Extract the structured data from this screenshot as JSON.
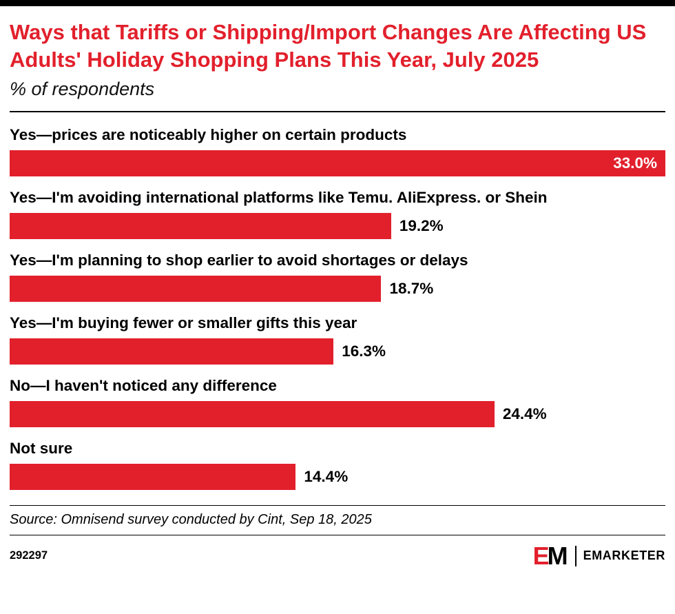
{
  "header": {
    "title": "Ways that Tariffs or Shipping/Import Changes Are Affecting US Adults' Holiday Shopping Plans This Year, July 2025",
    "subtitle": "% of respondents"
  },
  "chart_data": {
    "type": "bar",
    "orientation": "horizontal",
    "title": "Ways that Tariffs or Shipping/Import Changes Are Affecting US Adults' Holiday Shopping Plans This Year, July 2025",
    "xlabel": "% of respondents",
    "ylabel": "",
    "xlim": [
      0,
      33.0
    ],
    "grid": false,
    "legend": "none",
    "bar_color": "#e2202c",
    "categories": [
      "Yes—prices are noticeably higher on certain products",
      "Yes—I'm avoiding international platforms like Temu. AliExpress. or Shein",
      "Yes—I'm planning to shop earlier to avoid shortages or delays",
      "Yes—I'm buying fewer or smaller gifts this year",
      "No—I haven't noticed any difference",
      "Not sure"
    ],
    "values": [
      33.0,
      19.2,
      18.7,
      16.3,
      24.4,
      14.4
    ],
    "value_labels": [
      "33.0%",
      "19.2%",
      "18.7%",
      "16.3%",
      "24.4%",
      "14.4%"
    ]
  },
  "footer": {
    "source": "Source: Omnisend survey conducted by Cint, Sep 18, 2025",
    "chart_id": "292297",
    "logo": {
      "monogram_e": "E",
      "monogram_m": "M",
      "wordmark": "EMARKETER"
    }
  },
  "colors": {
    "accent_red": "#e2202c",
    "top_bar": "#000000"
  }
}
